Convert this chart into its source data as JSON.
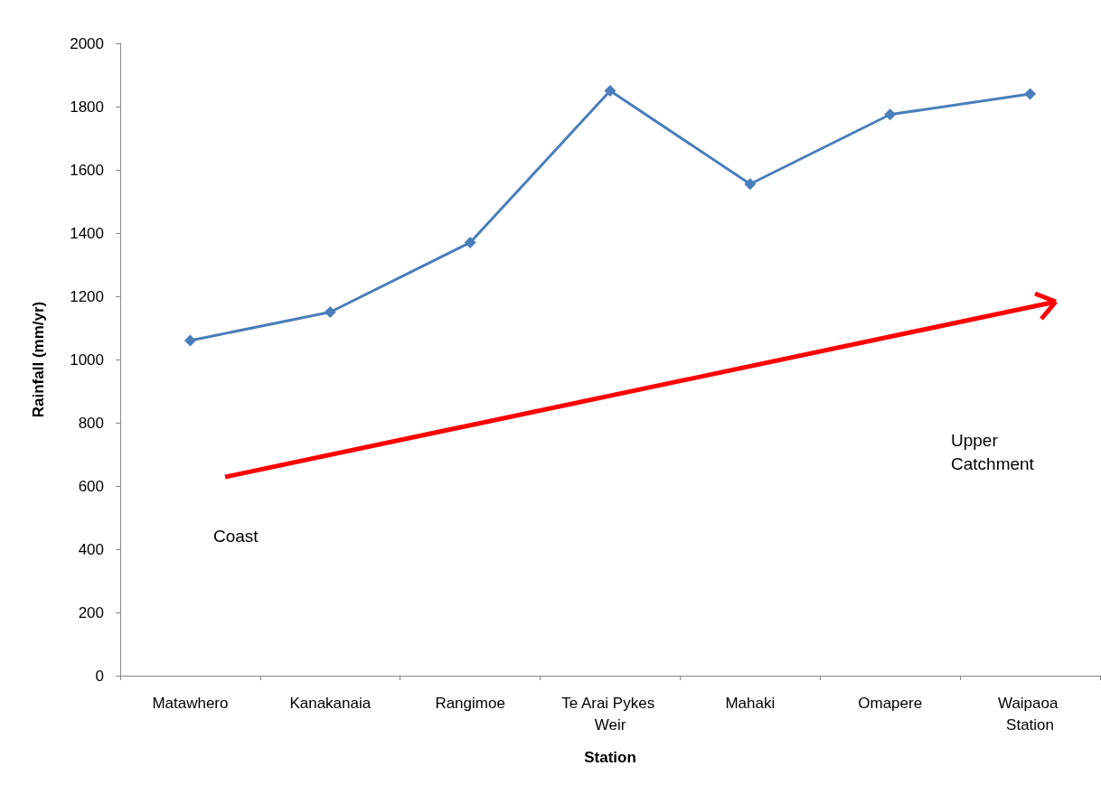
{
  "chart_data": {
    "type": "line",
    "xlabel": "Station",
    "ylabel": "Rainfall (mm/yr)",
    "categories": [
      "Matawhero",
      "Kanakanaia",
      "Rangimoe",
      "Te Arai Pykes Weir",
      "Mahaki",
      "Omapere",
      "Waipaoa Station"
    ],
    "series": [
      {
        "color": "#4a7ebb",
        "values": [
          1060,
          1150,
          1370,
          1850,
          1555,
          1775,
          1840
        ]
      }
    ],
    "ylim": [
      0,
      2000
    ],
    "yticks": [
      0,
      200,
      400,
      600,
      800,
      1000,
      1200,
      1400,
      1600,
      1800,
      2000
    ],
    "grid": false,
    "marker": "diamond",
    "line_style": "solid",
    "annotations": [
      "Coast",
      "Upper\nCatchment"
    ]
  }
}
